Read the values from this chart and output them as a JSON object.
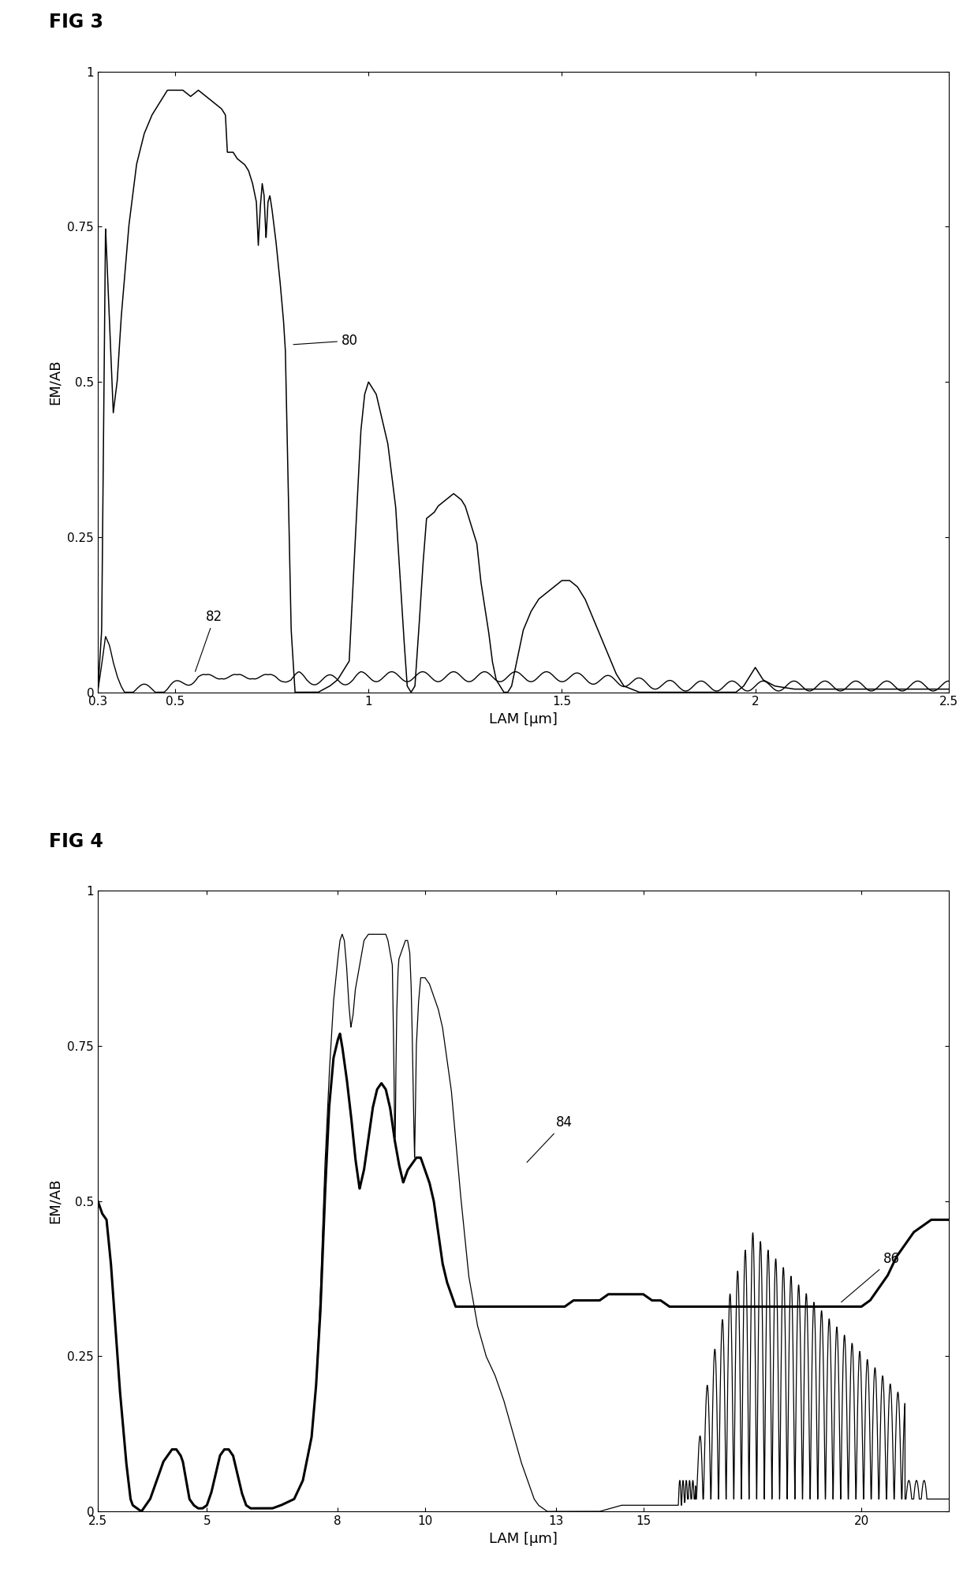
{
  "fig3_title": "FIG 3",
  "fig4_title": "FIG 4",
  "xlabel": "LAM [μm]",
  "ylabel": "EM/AB",
  "fig3_xlim": [
    0.3,
    2.5
  ],
  "fig3_ylim": [
    0,
    1
  ],
  "fig4_xlim": [
    2.5,
    22
  ],
  "fig4_ylim": [
    0,
    1
  ],
  "background_color": "#ffffff",
  "line_color": "#000000",
  "label_80": "80",
  "label_82": "82",
  "label_84": "84",
  "label_86": "86"
}
